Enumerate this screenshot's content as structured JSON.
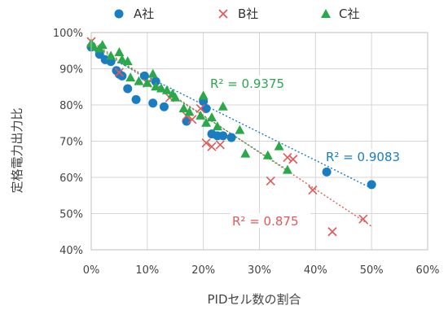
{
  "chart_data": {
    "type": "scatter",
    "xlabel": "PIDセル数の割合",
    "ylabel": "定格電力出力比",
    "xlim": [
      0,
      60
    ],
    "ylim": [
      40,
      100
    ],
    "x_ticks": [
      0,
      10,
      20,
      30,
      40,
      50,
      60
    ],
    "y_ticks": [
      40,
      50,
      60,
      70,
      80,
      90,
      100
    ],
    "x_tick_labels": [
      "0%",
      "10%",
      "20%",
      "30%",
      "40%",
      "50%",
      "60%"
    ],
    "y_tick_labels": [
      "40%",
      "50%",
      "60%",
      "70%",
      "80%",
      "90%",
      "100%"
    ],
    "grid": true,
    "legend_position": "top",
    "series": [
      {
        "name": "A社",
        "marker": "circle",
        "color": "#1a7dc2",
        "points": [
          [
            0,
            96
          ],
          [
            1.5,
            94
          ],
          [
            2.5,
            92.5
          ],
          [
            3.5,
            92
          ],
          [
            4.5,
            89.5
          ],
          [
            5,
            88.5
          ],
          [
            5.5,
            88
          ],
          [
            6.5,
            84.5
          ],
          [
            8,
            81.5
          ],
          [
            9.5,
            88
          ],
          [
            11,
            80.5
          ],
          [
            11.5,
            86.5
          ],
          [
            13,
            79.5
          ],
          [
            17,
            75.5
          ],
          [
            20,
            81
          ],
          [
            20.5,
            79
          ],
          [
            21.5,
            72
          ],
          [
            22.5,
            71.5
          ],
          [
            23.5,
            71.5
          ],
          [
            25,
            71
          ],
          [
            42,
            61.5
          ],
          [
            50,
            58
          ]
        ],
        "trend": {
          "r2_label": "R² = 0.9083",
          "from": [
            0,
            95.5
          ],
          "to": [
            50,
            57
          ]
        }
      },
      {
        "name": "B社",
        "marker": "x",
        "color": "#e05a5a",
        "points": [
          [
            0,
            97.5
          ],
          [
            5,
            89
          ],
          [
            10,
            86
          ],
          [
            14,
            82
          ],
          [
            17,
            77
          ],
          [
            18,
            76
          ],
          [
            19.5,
            79
          ],
          [
            20.5,
            69.5
          ],
          [
            21.5,
            68.5
          ],
          [
            23,
            69
          ],
          [
            32,
            59
          ],
          [
            35,
            65.5
          ],
          [
            36,
            65
          ],
          [
            39.5,
            56.5
          ],
          [
            43,
            45
          ],
          [
            48.5,
            48.5
          ]
        ],
        "trend": {
          "r2_label": "R² = 0.875",
          "from": [
            0,
            97.5
          ],
          "to": [
            50,
            46.5
          ]
        }
      },
      {
        "name": "C社",
        "marker": "triangle",
        "color": "#2aa84a",
        "points": [
          [
            0,
            97
          ],
          [
            0.5,
            96
          ],
          [
            1.5,
            95.5
          ],
          [
            2,
            96.5
          ],
          [
            3.5,
            93.5
          ],
          [
            5,
            94.5
          ],
          [
            5.5,
            92.5
          ],
          [
            6.5,
            92
          ],
          [
            7,
            87.5
          ],
          [
            8.5,
            86.5
          ],
          [
            10,
            86
          ],
          [
            11,
            88.5
          ],
          [
            11.5,
            85
          ],
          [
            12.5,
            84.5
          ],
          [
            13.5,
            84
          ],
          [
            14.5,
            83
          ],
          [
            15,
            82
          ],
          [
            16.5,
            79
          ],
          [
            17.5,
            78
          ],
          [
            19.5,
            77
          ],
          [
            20,
            82.5
          ],
          [
            20.5,
            75
          ],
          [
            21.5,
            76.5
          ],
          [
            22.5,
            74
          ],
          [
            23.5,
            79.5
          ],
          [
            26.5,
            73
          ],
          [
            27.5,
            66.5
          ],
          [
            31.5,
            66
          ],
          [
            33.5,
            68.5
          ],
          [
            35,
            62
          ]
        ],
        "trend": {
          "r2_label": "R² = 0.9375",
          "from": [
            0,
            97
          ],
          "to": [
            35,
            62
          ]
        }
      }
    ]
  }
}
